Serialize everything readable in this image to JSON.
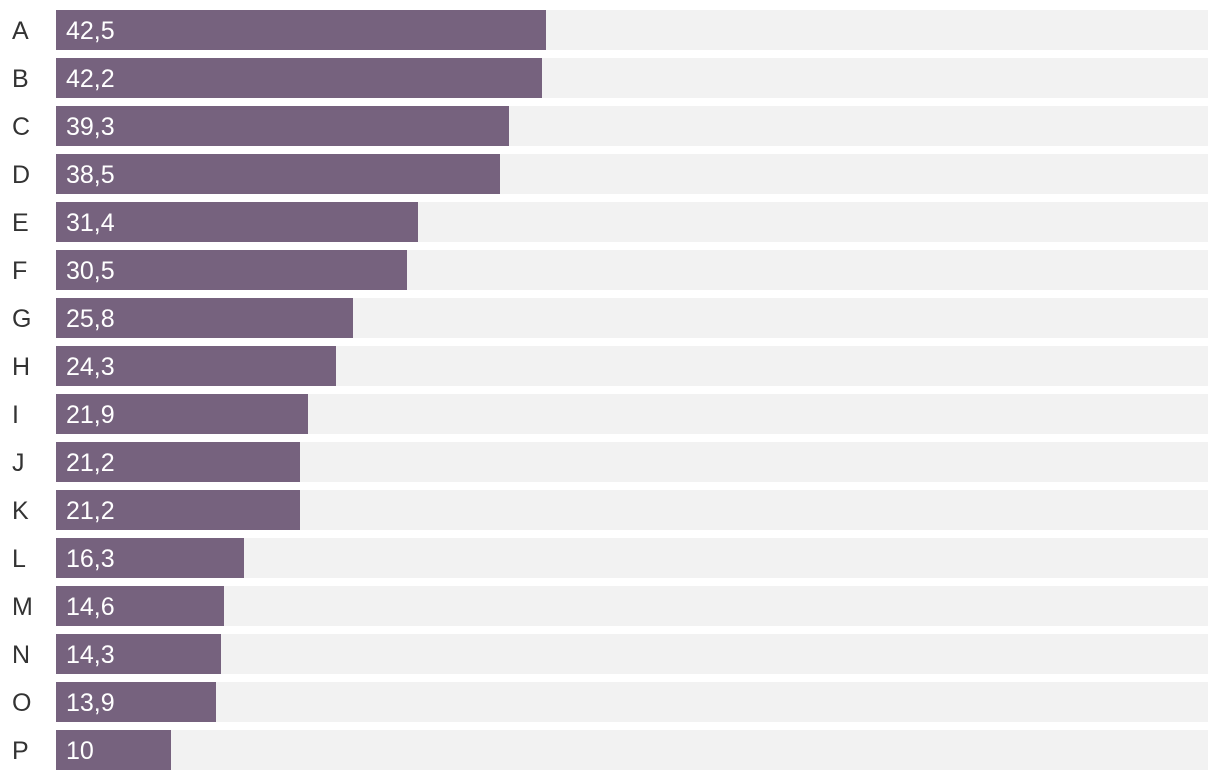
{
  "chart_data": {
    "type": "bar",
    "orientation": "horizontal",
    "categories": [
      "A",
      "B",
      "C",
      "D",
      "E",
      "F",
      "G",
      "H",
      "I",
      "J",
      "K",
      "L",
      "M",
      "N",
      "O",
      "P"
    ],
    "values": [
      42.5,
      42.2,
      39.3,
      38.5,
      31.4,
      30.5,
      25.8,
      24.3,
      21.9,
      21.2,
      21.2,
      16.3,
      14.6,
      14.3,
      13.9,
      10
    ],
    "value_labels": [
      "42,5",
      "42,2",
      "39,3",
      "38,5",
      "31,4",
      "30,5",
      "25,8",
      "24,3",
      "21,9",
      "21,2",
      "21,2",
      "16,3",
      "14,6",
      "14,3",
      "13,9",
      "10"
    ],
    "xlim": [
      0,
      100
    ],
    "grid": false,
    "legend": "none",
    "bar_color": "#76627e",
    "track_color": "#f2f2f2"
  }
}
